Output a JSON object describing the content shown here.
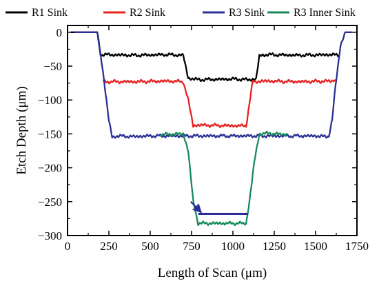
{
  "chart_data": {
    "type": "line",
    "title": "",
    "xlabel": "Length of Scan (μm)",
    "ylabel": "Etch Depth (μm)",
    "xlim": [
      0,
      1750
    ],
    "ylim": [
      -300,
      10
    ],
    "xticks": [
      0,
      250,
      500,
      750,
      1000,
      1250,
      1500,
      1750
    ],
    "yticks": [
      0,
      -50,
      -100,
      -150,
      -200,
      -250,
      -300
    ],
    "legend_position": "top",
    "series": [
      {
        "name": "R1 Sink",
        "color": "#000000",
        "x": [
          20,
          180,
          200,
          220,
          400,
          600,
          700,
          730,
          800,
          1000,
          1100,
          1140,
          1160,
          1200,
          1400,
          1600,
          1640
        ],
        "y": [
          0,
          0,
          -33,
          -33,
          -34,
          -33,
          -34,
          -68,
          -70,
          -69,
          -70,
          -69,
          -35,
          -33,
          -34,
          -33,
          -34
        ]
      },
      {
        "name": "R2 Sink",
        "color": "#e8201e",
        "x": [
          215,
          230,
          400,
          600,
          700,
          730,
          760,
          800,
          1000,
          1080,
          1100,
          1120,
          1200,
          1400,
          1600,
          1620
        ],
        "y": [
          -72,
          -73,
          -73,
          -72,
          -73,
          -100,
          -138,
          -137,
          -138,
          -138,
          -105,
          -73,
          -72,
          -73,
          -72,
          -70
        ]
      },
      {
        "name": "R3 Sink",
        "color": "#2b2f94",
        "x": [
          40,
          180,
          210,
          250,
          270,
          300,
          400,
          500,
          580,
          1500,
          1560,
          1580,
          1600,
          1620,
          1650,
          1680,
          1720
        ],
        "y": [
          0,
          0,
          -50,
          -130,
          -155,
          -153,
          -154,
          -153,
          -153,
          -153,
          -154,
          -153,
          -130,
          -80,
          -20,
          0,
          0
        ]
      },
      {
        "name": "R3 Inner Sink",
        "color": "#168a5a",
        "x": [
          560,
          700,
          730,
          760,
          790,
          1000,
          1080,
          1100,
          1130,
          1160,
          1220,
          1260,
          1330
        ],
        "y": [
          -151,
          -150,
          -175,
          -250,
          -282,
          -282,
          -282,
          -250,
          -190,
          -150,
          -149,
          -150,
          -151
        ]
      }
    ],
    "annotations": [
      {
        "type": "bar",
        "color": "#2b2f94",
        "x_start": 790,
        "x_end": 1090,
        "y": -268
      },
      {
        "type": "arrow",
        "color": "#2b2f94",
        "from": [
          745,
          -250
        ],
        "to": [
          805,
          -265
        ]
      }
    ]
  }
}
